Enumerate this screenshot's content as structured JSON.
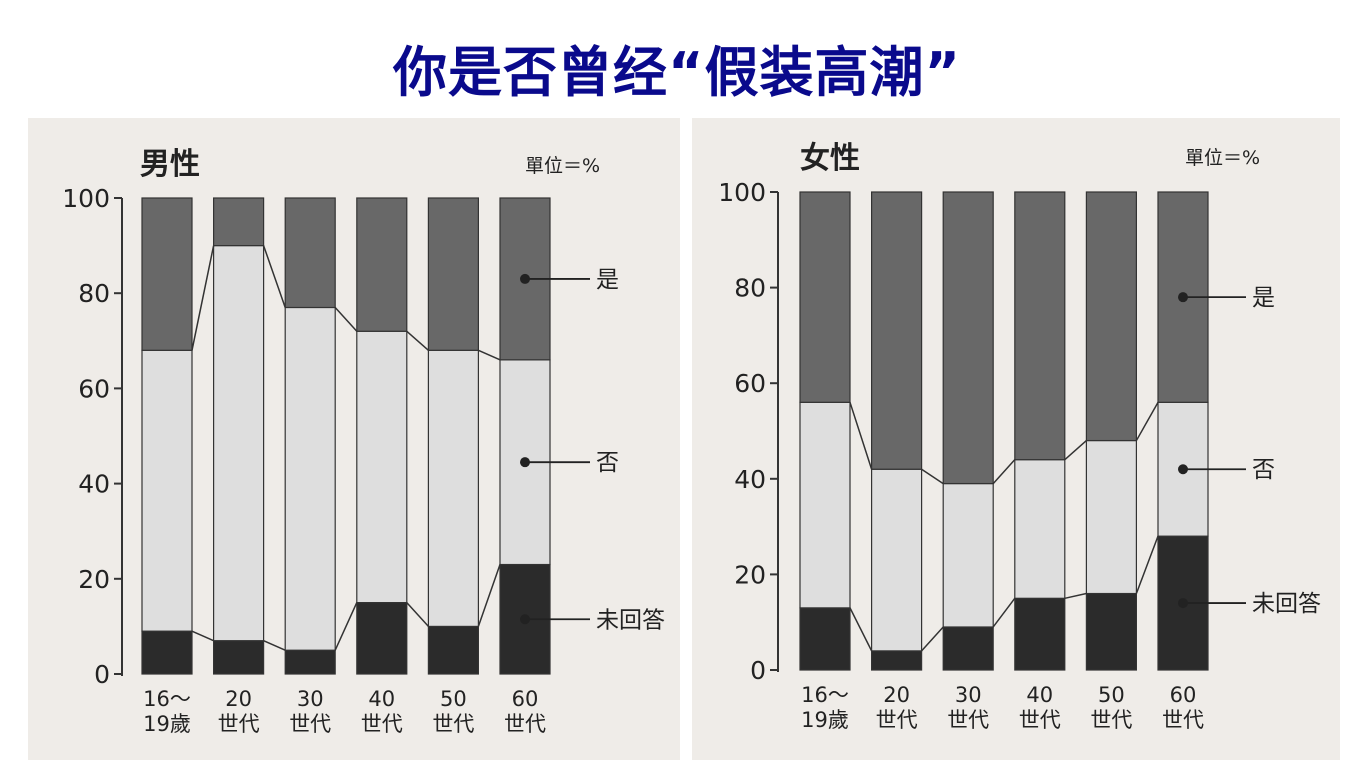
{
  "title": "你是否曾经“假装高潮”",
  "chart_data": [
    {
      "type": "bar",
      "stacked": true,
      "percent": true,
      "title": "男性",
      "unit_label": "單位＝%",
      "categories": [
        "16～\n19歲",
        "20\n世代",
        "30\n世代",
        "40\n世代",
        "50\n世代",
        "60\n世代"
      ],
      "series": [
        {
          "name": "未回答",
          "color": "#2b2b2b",
          "values": [
            9,
            7,
            5,
            15,
            10,
            23
          ]
        },
        {
          "name": "否",
          "color": "#dedede",
          "values": [
            59,
            83,
            72,
            57,
            58,
            43
          ]
        },
        {
          "name": "是",
          "color": "#686868",
          "values": [
            32,
            10,
            23,
            28,
            32,
            34
          ]
        }
      ],
      "ylim": [
        0,
        100
      ],
      "yticks": [
        0,
        20,
        40,
        60,
        80,
        100
      ],
      "legend": "right, inline labels"
    },
    {
      "type": "bar",
      "stacked": true,
      "percent": true,
      "title": "女性",
      "unit_label": "單位＝%",
      "categories": [
        "16～\n19歲",
        "20\n世代",
        "30\n世代",
        "40\n世代",
        "50\n世代",
        "60\n世代"
      ],
      "series": [
        {
          "name": "未回答",
          "color": "#2b2b2b",
          "values": [
            13,
            4,
            9,
            15,
            16,
            28
          ]
        },
        {
          "name": "否",
          "color": "#dedede",
          "values": [
            43,
            38,
            30,
            29,
            32,
            28
          ]
        },
        {
          "name": "是",
          "color": "#686868",
          "values": [
            44,
            58,
            61,
            56,
            52,
            44
          ]
        }
      ],
      "ylim": [
        0,
        100
      ],
      "yticks": [
        0,
        20,
        40,
        60,
        80,
        100
      ],
      "legend": "right, inline labels"
    }
  ]
}
